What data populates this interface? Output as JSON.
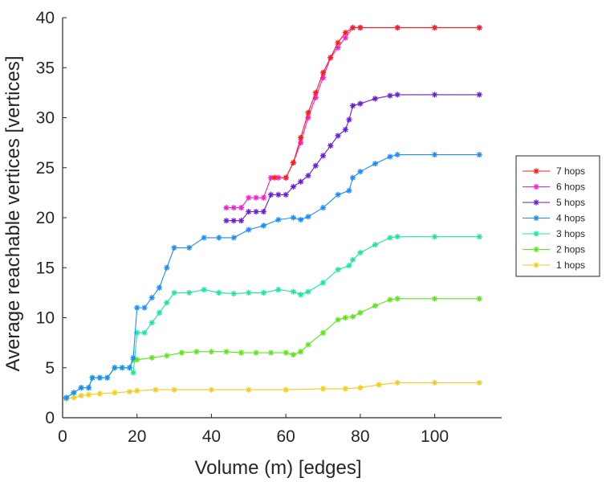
{
  "chart_data": {
    "type": "line",
    "title": "",
    "xlabel": "Volume (m) [edges]",
    "ylabel": "Average reachable vertices [vertices]",
    "xlim": [
      0,
      118
    ],
    "ylim": [
      0,
      40
    ],
    "xticks": [
      0,
      20,
      40,
      60,
      80,
      100
    ],
    "yticks": [
      0,
      5,
      10,
      15,
      20,
      25,
      30,
      35,
      40
    ],
    "marker": "asterisk",
    "legend_position": "right",
    "series": [
      {
        "name": "7 hops",
        "color": "#ff1a1a",
        "x": [
          57,
          60,
          62,
          64,
          66,
          68,
          70,
          72,
          74,
          76,
          78,
          80,
          90,
          100,
          112
        ],
        "y": [
          24,
          24,
          25.5,
          28,
          30.5,
          32.5,
          34.5,
          36,
          37.5,
          38.5,
          39,
          39,
          39,
          39,
          39
        ]
      },
      {
        "name": "6 hops",
        "color": "#ff1acd",
        "x": [
          44,
          46,
          48,
          50,
          52,
          54,
          56,
          58,
          60,
          62,
          64,
          66,
          68,
          70,
          72,
          74,
          76,
          78,
          80,
          90,
          100,
          112
        ],
        "y": [
          21,
          21,
          21,
          22,
          22,
          22,
          24,
          24,
          24,
          25.5,
          27.5,
          30,
          32,
          34,
          36,
          37,
          38,
          39,
          39,
          39,
          39,
          39
        ]
      },
      {
        "name": "5 hops",
        "color": "#6a1ad9",
        "x": [
          44,
          46,
          48,
          50,
          52,
          54,
          56,
          58,
          60,
          62,
          64,
          66,
          68,
          70,
          72,
          74,
          76,
          77,
          78,
          80,
          84,
          88,
          90,
          100,
          112
        ],
        "y": [
          19.7,
          19.7,
          19.7,
          20.6,
          20.6,
          20.6,
          22.3,
          22.3,
          22.3,
          23.1,
          23.6,
          24.2,
          25.2,
          26.2,
          27.2,
          28.2,
          28.8,
          29.8,
          31.2,
          31.4,
          31.9,
          32.2,
          32.3,
          32.3,
          32.3
        ]
      },
      {
        "name": "4 hops",
        "color": "#1a8cff",
        "x": [
          1,
          3,
          5,
          7,
          8,
          10,
          12,
          14,
          16,
          18,
          19,
          20,
          22,
          24,
          26,
          28,
          30,
          34,
          38,
          42,
          46,
          50,
          54,
          58,
          62,
          64,
          66,
          70,
          74,
          77,
          78,
          80,
          84,
          88,
          90,
          100,
          112
        ],
        "y": [
          2,
          2.5,
          3,
          3,
          4,
          4,
          4,
          5,
          5,
          5,
          6,
          11,
          11,
          12,
          13,
          15,
          17,
          17,
          18,
          18,
          18,
          18.8,
          19.2,
          19.8,
          20,
          19.8,
          20.1,
          21,
          22.3,
          22.7,
          24,
          24.6,
          25.4,
          26.1,
          26.3,
          26.3,
          26.3
        ]
      },
      {
        "name": "3 hops",
        "color": "#1ae6a0",
        "x": [
          1,
          3,
          5,
          7,
          8,
          10,
          12,
          14,
          16,
          18,
          19,
          20,
          22,
          24,
          26,
          28,
          30,
          34,
          38,
          42,
          46,
          50,
          54,
          58,
          62,
          64,
          66,
          70,
          74,
          77,
          78,
          80,
          84,
          88,
          90,
          100,
          112
        ],
        "y": [
          2,
          2.5,
          3,
          3,
          4,
          4,
          4,
          5,
          5,
          5,
          4.5,
          8.5,
          8.5,
          9.5,
          10.5,
          11.5,
          12.5,
          12.5,
          12.8,
          12.5,
          12.4,
          12.5,
          12.5,
          12.8,
          12.6,
          12.3,
          12.6,
          13.5,
          14.8,
          15.2,
          15.8,
          16.5,
          17.3,
          18,
          18.1,
          18.1,
          18.1
        ]
      },
      {
        "name": "2 hops",
        "color": "#5ae61a",
        "x": [
          1,
          3,
          5,
          7,
          8,
          10,
          12,
          14,
          16,
          18,
          19,
          20,
          24,
          28,
          32,
          36,
          40,
          44,
          48,
          52,
          56,
          60,
          62,
          64,
          66,
          70,
          74,
          76,
          78,
          80,
          84,
          88,
          90,
          100,
          112
        ],
        "y": [
          2,
          2.5,
          3,
          3,
          4,
          4,
          4,
          5,
          5,
          5,
          5.8,
          5.8,
          6,
          6.2,
          6.5,
          6.6,
          6.6,
          6.6,
          6.5,
          6.5,
          6.5,
          6.5,
          6.3,
          6.6,
          7.3,
          8.5,
          9.8,
          10,
          10.1,
          10.5,
          11.2,
          11.8,
          11.9,
          11.9,
          11.9
        ]
      },
      {
        "name": "1 hops",
        "color": "#f2cc1a",
        "x": [
          1,
          3,
          5,
          7,
          10,
          14,
          18,
          20,
          25,
          30,
          40,
          50,
          60,
          70,
          76,
          80,
          85,
          90,
          100,
          112
        ],
        "y": [
          1.9,
          2,
          2.2,
          2.3,
          2.4,
          2.5,
          2.6,
          2.7,
          2.8,
          2.8,
          2.8,
          2.8,
          2.8,
          2.9,
          2.9,
          3,
          3.3,
          3.5,
          3.5,
          3.5
        ]
      }
    ]
  }
}
